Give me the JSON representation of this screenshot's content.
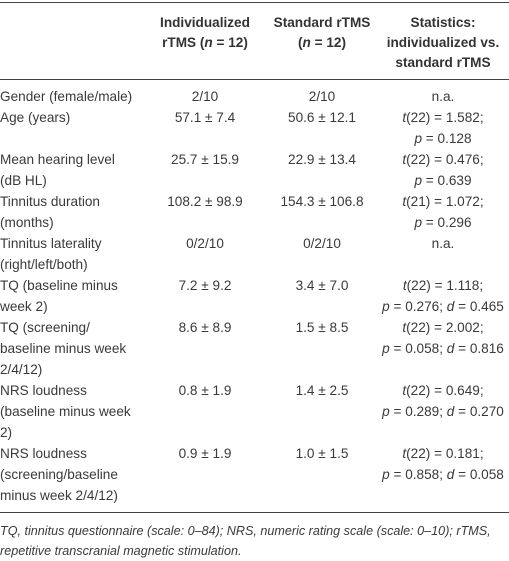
{
  "table": {
    "header": [
      "",
      "Individualized rTMS (n = 12)",
      "Standard rTMS (n = 12)",
      "Statistics: individualized vs. standard rTMS"
    ],
    "rows": [
      [
        "Gender (female/male)",
        "2/10",
        "2/10",
        "n.a."
      ],
      [
        "Age (years)",
        "57.1 ± 7.4",
        "50.6 ± 12.1",
        "t(22) = 1.582; p = 0.128"
      ],
      [
        "Mean hearing level (dB HL)",
        "25.7 ± 15.9",
        "22.9 ± 13.4",
        "t(22) = 0.476; p = 0.639"
      ],
      [
        "Tinnitus duration (months)",
        "108.2 ± 98.9",
        "154.3 ± 106.8",
        "t(21) = 1.072; p = 0.296"
      ],
      [
        "Tinnitus laterality (right/left/both)",
        "0/2/10",
        "0/2/10",
        "n.a."
      ],
      [
        "TQ (baseline minus week 2)",
        "7.2 ± 9.2",
        "3.4 ± 7.0",
        "t(22) = 1.118; p = 0.276; d = 0.465"
      ],
      [
        "TQ (screening/ baseline minus week 2/4/12)",
        "8.6 ± 8.9",
        "1.5 ± 8.5",
        "t(22) = 2.002; p = 0.058; d = 0.816"
      ],
      [
        "NRS loudness (baseline minus week 2)",
        "0.8 ± 1.9",
        "1.4 ± 2.5",
        "t(22) = 0.649; p = 0.289; d = 0.270"
      ],
      [
        "NRS loudness (screening/baseline minus week 2/4/12)",
        "0.9 ± 1.9",
        "1.0 ± 1.5",
        "t(22) = 0.181; p = 0.858; d = 0.058"
      ]
    ],
    "footnote": "TQ, tinnitus questionnaire (scale: 0–84); NRS, numeric rating scale (scale: 0–10); rTMS, repetitive transcranial magnetic stimulation."
  }
}
